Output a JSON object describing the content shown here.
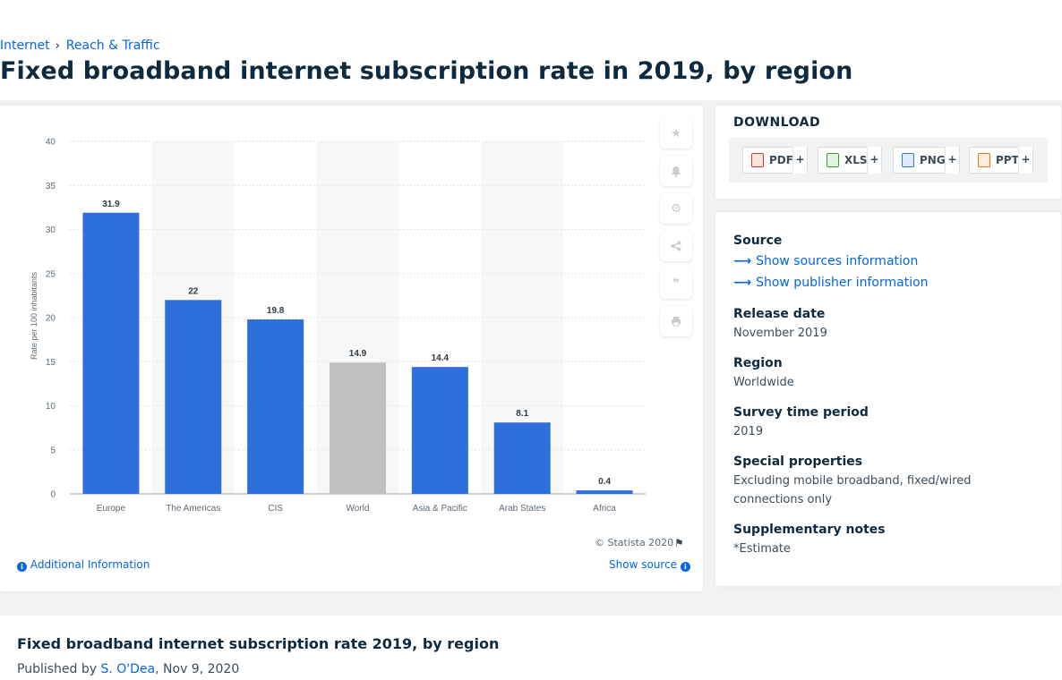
{
  "breadcrumb": {
    "item1": "Internet",
    "separator": "›",
    "item2": "Reach & Traffic"
  },
  "page_title": "Fixed broadband internet subscription rate in 2019, by region",
  "chart_data": {
    "type": "bar",
    "categories": [
      "Europe",
      "The Americas",
      "CIS",
      "World",
      "Asia & Pacific",
      "Arab States",
      "Africa"
    ],
    "values": [
      31.9,
      22,
      19.8,
      14.9,
      14.4,
      8.1,
      0.4
    ],
    "value_labels": [
      "31.9",
      "22",
      "19.8",
      "14.9",
      "14.4",
      "8.1",
      "0.4"
    ],
    "highlight_category": "World",
    "ylabel": "Rate per 100 inhabitants",
    "ylim": [
      0,
      40
    ],
    "yticks": [
      0,
      5,
      10,
      15,
      20,
      25,
      30,
      35,
      40
    ],
    "bar_color": "#2f6fdb",
    "highlight_color": "#c0c0c0",
    "grid": true
  },
  "chart_footer": {
    "copyright": "© Statista 2020",
    "additional_info": "Additional Information",
    "show_source": "Show source"
  },
  "tools": {
    "icons": [
      "star-icon",
      "bell-icon",
      "gear-icon",
      "share-icon",
      "quote-icon",
      "print-icon"
    ]
  },
  "download": {
    "title": "DOWNLOAD",
    "buttons": [
      {
        "label": "PDF",
        "color": "#d9342b"
      },
      {
        "label": "XLS",
        "color": "#3a9a3e"
      },
      {
        "label": "PNG",
        "color": "#2d7ad4"
      },
      {
        "label": "PPT",
        "color": "#e0772a"
      }
    ],
    "plus": "+"
  },
  "meta": {
    "source_heading": "Source",
    "show_sources": "Show sources information",
    "show_publisher": "Show publisher information",
    "release_heading": "Release date",
    "release_value": "November 2019",
    "region_heading": "Region",
    "region_value": "Worldwide",
    "survey_heading": "Survey time period",
    "survey_value": "2019",
    "special_heading": "Special properties",
    "special_value": "Excluding mobile broadband, fixed/wired connections only",
    "supp_heading": "Supplementary notes",
    "supp_value": "*Estimate"
  },
  "bottom": {
    "title": "Fixed broadband internet subscription rate 2019, by region",
    "published_by": "Published by",
    "author": "S. O'Dea",
    "date": ", Nov 9, 2020"
  }
}
